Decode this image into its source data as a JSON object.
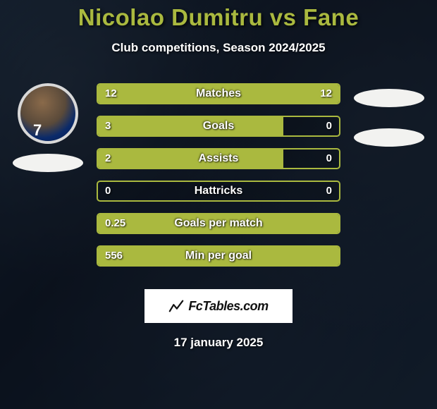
{
  "title": "Nicolao Dumitru vs Fane",
  "subtitle": "Club competitions, Season 2024/2025",
  "date_text": "17 january 2025",
  "colors": {
    "title_color": "#aab93f",
    "bar_border": "#aab93f",
    "bar_fill": "#aab93f",
    "text_white": "#ffffff",
    "logo_bg": "#ffffff",
    "ellipse_bg": "#f2f2f0"
  },
  "typography": {
    "title_fontsize": 33,
    "subtitle_fontsize": 17,
    "stat_label_fontsize": 16,
    "stat_value_fontsize": 15
  },
  "player_left": {
    "name": "Nicolao Dumitru",
    "jersey_num": "7",
    "has_photo": true
  },
  "player_right": {
    "name": "Fane",
    "has_photo": false
  },
  "stats": [
    {
      "label": "Matches",
      "left_val": "12",
      "right_val": "12",
      "left_pct": 50,
      "right_pct": 50
    },
    {
      "label": "Goals",
      "left_val": "3",
      "right_val": "0",
      "left_pct": 77,
      "right_pct": 0
    },
    {
      "label": "Assists",
      "left_val": "2",
      "right_val": "0",
      "left_pct": 77,
      "right_pct": 0
    },
    {
      "label": "Hattricks",
      "left_val": "0",
      "right_val": "0",
      "left_pct": 0,
      "right_pct": 0
    },
    {
      "label": "Goals per match",
      "left_val": "0.25",
      "right_val": "",
      "left_pct": 100,
      "right_pct": 0
    },
    {
      "label": "Min per goal",
      "left_val": "556",
      "right_val": "",
      "left_pct": 100,
      "right_pct": 0
    }
  ],
  "logo": {
    "text": "FcTables.com"
  }
}
